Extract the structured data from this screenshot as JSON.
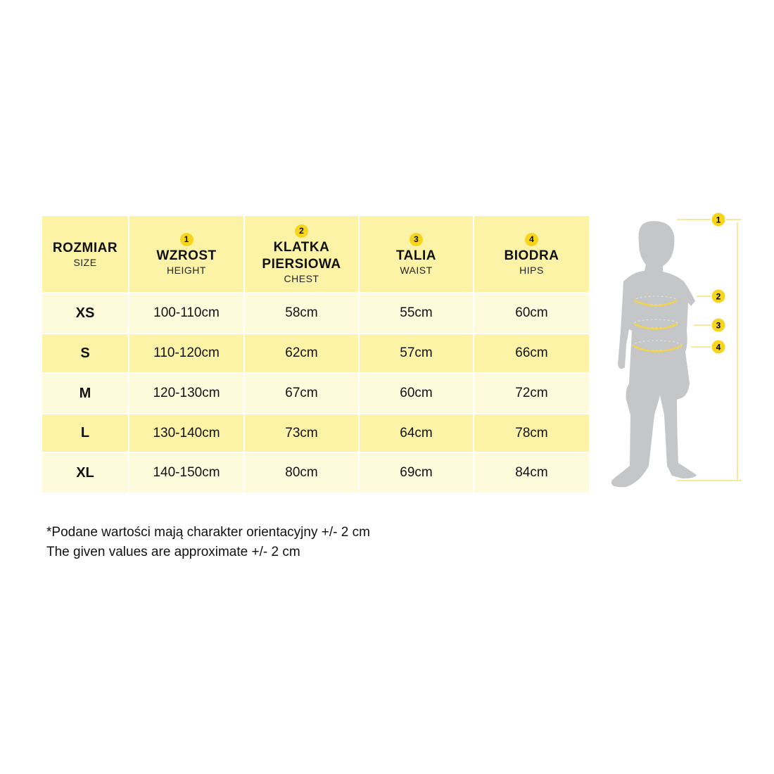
{
  "headers": [
    {
      "pl": "ROZMIAR",
      "en": "SIZE",
      "marker": ""
    },
    {
      "pl": "WZROST",
      "en": "HEIGHT",
      "marker": "1"
    },
    {
      "pl": "KLATKA PIERSIOWA",
      "en": "CHEST",
      "marker": "2"
    },
    {
      "pl": "TALIA",
      "en": "WAIST",
      "marker": "3"
    },
    {
      "pl": "BIODRA",
      "en": "HIPS",
      "marker": "4"
    }
  ],
  "rows": [
    [
      "XS",
      "100-110cm",
      "58cm",
      "55cm",
      "60cm"
    ],
    [
      "S",
      "110-120cm",
      "62cm",
      "57cm",
      "66cm"
    ],
    [
      "M",
      "120-130cm",
      "67cm",
      "60cm",
      "72cm"
    ],
    [
      "L",
      "130-140cm",
      "73cm",
      "64cm",
      "78cm"
    ],
    [
      "XL",
      "140-150cm",
      "80cm",
      "69cm",
      "84cm"
    ]
  ],
  "notes": {
    "pl": "*Podane wartości mają charakter orientacyjny +/- 2 cm",
    "en": "The given values are approximate +/- 2 cm"
  },
  "figure": {
    "markers": [
      "1",
      "2",
      "3",
      "4"
    ]
  },
  "colors": {
    "header": "#fdf3a6",
    "row_light": "#fefbdc",
    "marker": "#f7d51d",
    "silhouette": "#c4c6c8"
  }
}
